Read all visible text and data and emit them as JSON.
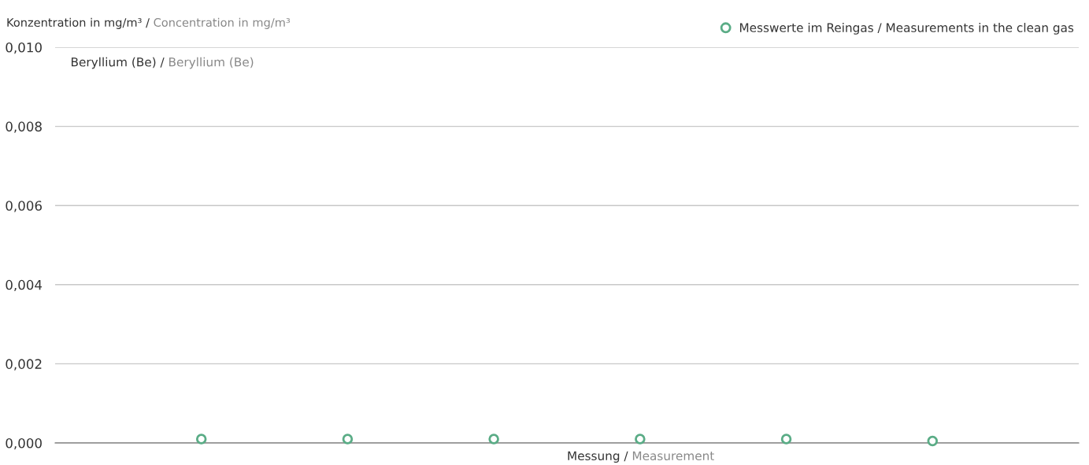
{
  "chart_data": {
    "type": "scatter",
    "title": "Beryllium (Be) / Beryllium (Be)",
    "xlabel": "Messung / Measurement",
    "ylabel": "Konzentration in mg/m³ / Concentration in mg/m³",
    "categories": [
      null,
      null,
      null,
      null,
      null,
      null
    ],
    "series": [
      {
        "name": "Messwerte im Reingas / Measurements in the clean gas",
        "color": "#5aac86",
        "values": [
          0.0001,
          0.0001,
          0.0001,
          0.0001,
          0.0001,
          5e-05
        ]
      }
    ],
    "ylim": [
      0,
      0.01
    ],
    "yticks": [
      {
        "value": 0,
        "label": "0,000"
      },
      {
        "value": 0.002,
        "label": "0,002"
      },
      {
        "value": 0.004,
        "label": "0,004"
      },
      {
        "value": 0.006,
        "label": "0,006"
      },
      {
        "value": 0.008,
        "label": "0,008"
      },
      {
        "value": 0.01,
        "label": "0,010"
      }
    ],
    "grid": "y",
    "legend": "top right",
    "marker": "circle",
    "tick_labels": "y"
  }
}
